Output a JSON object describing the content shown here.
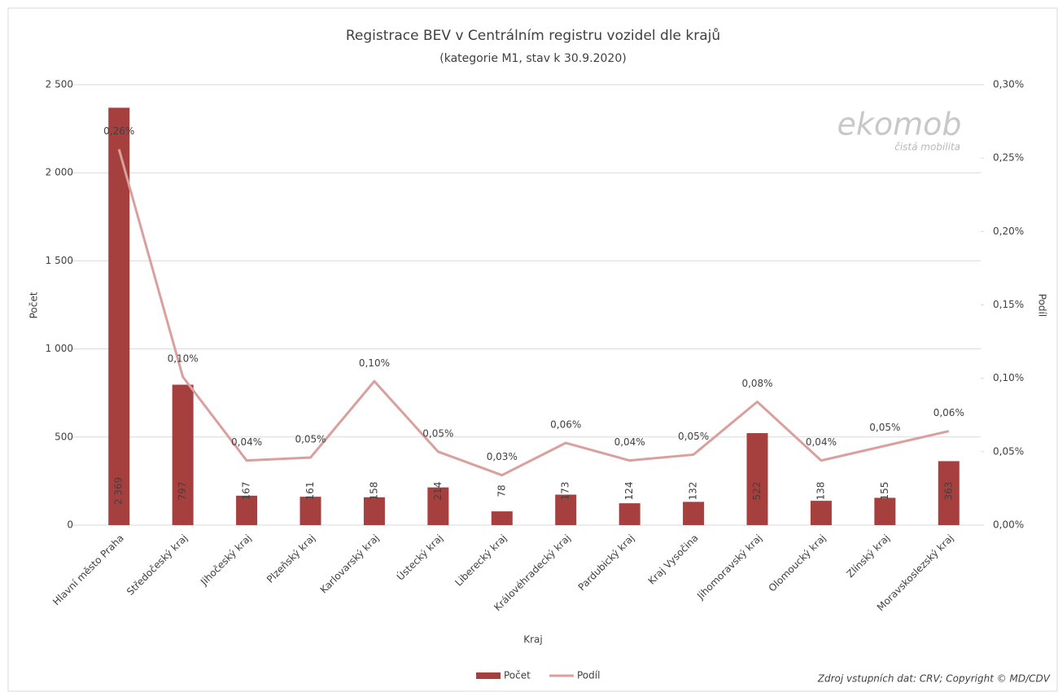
{
  "chart_data": {
    "type": "bar",
    "title": "Registrace BEV v Centrálním registru vozidel dle krajů",
    "subtitle": "(kategorie M1,  stav k 30.9.2020)",
    "x_label": "Kraj",
    "y_label": "Počet",
    "y2_label": "Podíl",
    "categories": [
      "Hlavní město Praha",
      "Středočeský kraj",
      "Jihočeský kraj",
      "Plzeňský kraj",
      "Karlovarský kraj",
      "Ústecký kraj",
      "Liberecký kraj",
      "Královéhradecký kraj",
      "Pardubický kraj",
      "Kraj Vysočina",
      "Jihomoravský kraj",
      "Olomoucký kraj",
      "Zlínský kraj",
      "Moravskoslezský kraj"
    ],
    "series": [
      {
        "name": "Počet",
        "type": "bar",
        "color": "#a5403f",
        "values": [
          2369,
          797,
          167,
          161,
          158,
          214,
          78,
          173,
          124,
          132,
          522,
          138,
          155,
          363
        ],
        "value_labels": [
          "2 369",
          "797",
          "167",
          "161",
          "158",
          "214",
          "78",
          "173",
          "124",
          "132",
          "522",
          "138",
          "155",
          "363"
        ]
      },
      {
        "name": "Podíl",
        "type": "line",
        "axis": "y2",
        "color": "#d9a09e",
        "values": [
          0.256,
          0.101,
          0.044,
          0.046,
          0.098,
          0.05,
          0.034,
          0.056,
          0.044,
          0.048,
          0.084,
          0.044,
          0.054,
          0.064
        ],
        "value_labels": [
          "0,26%",
          "0,10%",
          "0,04%",
          "0,05%",
          "0,10%",
          "0,05%",
          "0,03%",
          "0,06%",
          "0,04%",
          "0,05%",
          "0,08%",
          "0,04%",
          "0,05%",
          "0,06%"
        ]
      }
    ],
    "ylim": [
      0,
      2500
    ],
    "yticks": [
      0,
      500,
      {
        "value": 1000,
        "label": "1 000"
      },
      {
        "value": 1500,
        "label": "1 500"
      },
      {
        "value": 2000,
        "label": "2 000"
      },
      {
        "value": 2500,
        "label": "2 500"
      }
    ],
    "y2lim": [
      0,
      0.3
    ],
    "y2ticks": [
      {
        "value": 0,
        "label": "0,00%"
      },
      {
        "value": 0.05,
        "label": "0,05%"
      },
      {
        "value": 0.1,
        "label": "0,10%"
      },
      {
        "value": 0.15,
        "label": "0,15%"
      },
      {
        "value": 0.2,
        "label": "0,20%"
      },
      {
        "value": 0.25,
        "label": "0,25%"
      },
      {
        "value": 0.3,
        "label": "0,30%"
      }
    ],
    "grid": true,
    "legend": "bottom",
    "source": "Zdroj vstupních dat: CRV; Copyright © MD/CDV",
    "logo": {
      "text": "ekomob",
      "tagline": "čistá mobilita"
    }
  }
}
